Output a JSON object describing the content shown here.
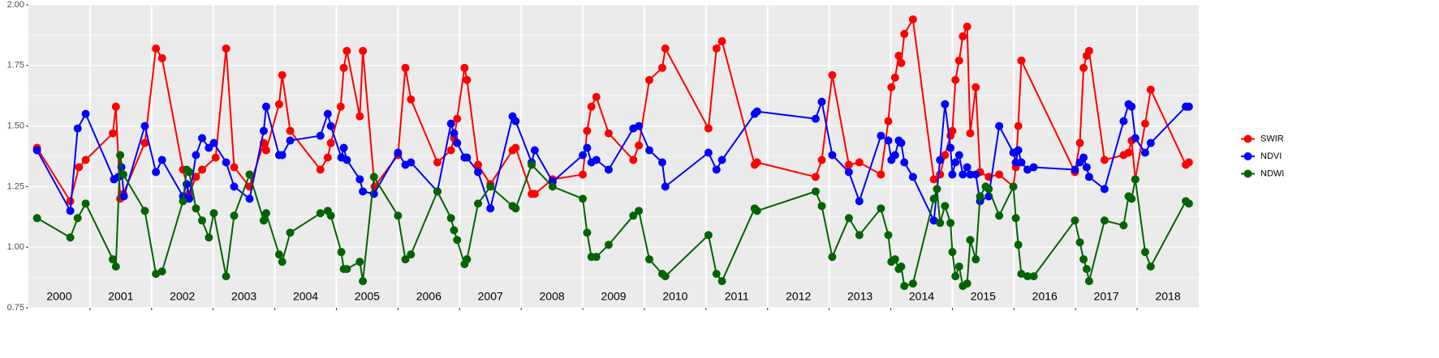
{
  "chart_data": {
    "type": "line",
    "series": [
      {
        "name": "SWIR",
        "color": "#ff0000",
        "x": [
          2000.14,
          2000.68,
          2000.82,
          2000.93,
          2001.37,
          2001.42,
          2001.49,
          2001.54,
          2001.89,
          2002.07,
          2002.17,
          2002.51,
          2002.61,
          2002.72,
          2002.82,
          2003.04,
          2003.21,
          2003.34,
          2003.59,
          2003.82,
          2003.86,
          2004.07,
          2004.12,
          2004.25,
          2004.74,
          2004.86,
          2004.91,
          2005.07,
          2005.12,
          2005.17,
          2005.38,
          2005.43,
          2005.62,
          2006.0,
          2006.12,
          2006.21,
          2006.64,
          2006.86,
          2006.91,
          2006.96,
          2007.08,
          2007.12,
          2007.3,
          2007.5,
          2007.86,
          2007.91,
          2008.17,
          2008.22,
          2008.51,
          2009.0,
          2009.07,
          2009.14,
          2009.22,
          2009.42,
          2009.82,
          2009.91,
          2010.08,
          2010.29,
          2010.34,
          2011.04,
          2011.17,
          2011.26,
          2011.79,
          2011.83,
          2012.78,
          2012.88,
          2013.05,
          2013.32,
          2013.49,
          2013.84,
          2013.96,
          2014.01,
          2014.07,
          2014.13,
          2014.17,
          2014.22,
          2014.36,
          2014.7,
          2014.8,
          2014.88,
          2014.97,
          2015.0,
          2015.05,
          2015.11,
          2015.17,
          2015.24,
          2015.29,
          2015.38,
          2015.45,
          2015.59,
          2015.76,
          2015.99,
          2016.03,
          2016.07,
          2016.12,
          2016.99,
          2017.07,
          2017.13,
          2017.18,
          2017.22,
          2017.47,
          2017.78,
          2017.86,
          2017.91,
          2017.97,
          2018.13,
          2018.22,
          2018.79,
          2018.84
        ],
        "values": [
          1.41,
          1.19,
          1.33,
          1.36,
          1.47,
          1.58,
          1.2,
          1.22,
          1.43,
          1.82,
          1.78,
          1.32,
          1.22,
          1.29,
          1.32,
          1.37,
          1.82,
          1.33,
          1.25,
          1.43,
          1.4,
          1.59,
          1.71,
          1.48,
          1.32,
          1.37,
          1.43,
          1.58,
          1.74,
          1.81,
          1.54,
          1.81,
          1.25,
          1.38,
          1.74,
          1.61,
          1.35,
          1.4,
          1.45,
          1.53,
          1.74,
          1.69,
          1.34,
          1.26,
          1.4,
          1.41,
          1.22,
          1.22,
          1.28,
          1.3,
          1.48,
          1.58,
          1.62,
          1.47,
          1.36,
          1.42,
          1.69,
          1.74,
          1.82,
          1.49,
          1.82,
          1.85,
          1.34,
          1.35,
          1.29,
          1.36,
          1.71,
          1.34,
          1.35,
          1.3,
          1.52,
          1.66,
          1.7,
          1.79,
          1.76,
          1.88,
          1.94,
          1.28,
          1.3,
          1.38,
          1.46,
          1.48,
          1.69,
          1.77,
          1.87,
          1.91,
          1.47,
          1.66,
          1.31,
          1.29,
          1.3,
          1.25,
          1.33,
          1.5,
          1.77,
          1.31,
          1.43,
          1.74,
          1.79,
          1.81,
          1.36,
          1.38,
          1.39,
          1.44,
          1.28,
          1.51,
          1.65,
          1.34,
          1.35
        ]
      },
      {
        "name": "NDVI",
        "color": "#0000ff",
        "x": [
          2000.14,
          2000.68,
          2000.8,
          2000.93,
          2001.39,
          2001.46,
          2001.51,
          2001.55,
          2001.89,
          2002.07,
          2002.17,
          2002.51,
          2002.57,
          2002.61,
          2002.72,
          2002.82,
          2002.93,
          2003.01,
          2003.21,
          2003.34,
          2003.59,
          2003.82,
          2003.86,
          2004.07,
          2004.12,
          2004.25,
          2004.74,
          2004.86,
          2004.91,
          2005.08,
          2005.12,
          2005.17,
          2005.38,
          2005.43,
          2005.61,
          2006.0,
          2006.12,
          2006.21,
          2006.64,
          2006.86,
          2006.91,
          2006.96,
          2007.08,
          2007.12,
          2007.3,
          2007.5,
          2007.86,
          2007.91,
          2008.17,
          2008.22,
          2008.51,
          2009.0,
          2009.07,
          2009.14,
          2009.22,
          2009.42,
          2009.82,
          2009.91,
          2010.08,
          2010.29,
          2010.34,
          2011.04,
          2011.17,
          2011.26,
          2011.79,
          2011.83,
          2012.78,
          2012.88,
          2013.05,
          2013.32,
          2013.49,
          2013.84,
          2013.96,
          2014.01,
          2014.07,
          2014.13,
          2014.17,
          2014.22,
          2014.36,
          2014.7,
          2014.8,
          2014.88,
          2014.97,
          2015.0,
          2015.05,
          2015.11,
          2015.17,
          2015.24,
          2015.29,
          2015.38,
          2015.45,
          2015.59,
          2015.76,
          2015.99,
          2016.03,
          2016.07,
          2016.12,
          2016.22,
          2016.32,
          2016.99,
          2017.07,
          2017.13,
          2017.18,
          2017.22,
          2017.47,
          2017.78,
          2017.86,
          2017.91,
          2017.97,
          2018.13,
          2018.22,
          2018.79,
          2018.84
        ],
        "values": [
          1.4,
          1.15,
          1.49,
          1.55,
          1.28,
          1.29,
          1.33,
          1.21,
          1.5,
          1.31,
          1.36,
          1.21,
          1.26,
          1.2,
          1.38,
          1.45,
          1.41,
          1.43,
          1.35,
          1.25,
          1.2,
          1.48,
          1.58,
          1.38,
          1.38,
          1.44,
          1.46,
          1.55,
          1.5,
          1.37,
          1.41,
          1.36,
          1.28,
          1.23,
          1.22,
          1.39,
          1.34,
          1.35,
          1.23,
          1.51,
          1.47,
          1.43,
          1.37,
          1.37,
          1.31,
          1.16,
          1.54,
          1.52,
          1.35,
          1.4,
          1.27,
          1.38,
          1.41,
          1.35,
          1.36,
          1.32,
          1.49,
          1.5,
          1.4,
          1.35,
          1.25,
          1.39,
          1.32,
          1.36,
          1.55,
          1.56,
          1.53,
          1.6,
          1.38,
          1.31,
          1.19,
          1.46,
          1.44,
          1.36,
          1.38,
          1.44,
          1.43,
          1.35,
          1.29,
          1.11,
          1.36,
          1.59,
          1.41,
          1.3,
          1.35,
          1.38,
          1.3,
          1.33,
          1.3,
          1.3,
          1.19,
          1.21,
          1.5,
          1.39,
          1.35,
          1.4,
          1.35,
          1.32,
          1.33,
          1.32,
          1.35,
          1.37,
          1.33,
          1.29,
          1.24,
          1.52,
          1.59,
          1.58,
          1.45,
          1.39,
          1.43,
          1.58,
          1.58
        ]
      },
      {
        "name": "NDWI",
        "color": "#006400",
        "x": [
          2000.14,
          2000.68,
          2000.8,
          2000.93,
          2001.37,
          2001.42,
          2001.49,
          2001.54,
          2001.89,
          2002.07,
          2002.17,
          2002.51,
          2002.57,
          2002.61,
          2002.72,
          2002.82,
          2002.93,
          2003.01,
          2003.21,
          2003.34,
          2003.59,
          2003.82,
          2003.86,
          2004.07,
          2004.12,
          2004.25,
          2004.74,
          2004.86,
          2004.91,
          2005.08,
          2005.12,
          2005.17,
          2005.38,
          2005.43,
          2005.61,
          2006.0,
          2006.12,
          2006.21,
          2006.64,
          2006.86,
          2006.91,
          2006.96,
          2007.08,
          2007.12,
          2007.3,
          2007.5,
          2007.86,
          2007.91,
          2008.17,
          2008.51,
          2009.0,
          2009.07,
          2009.14,
          2009.22,
          2009.42,
          2009.82,
          2009.91,
          2010.08,
          2010.29,
          2010.34,
          2011.04,
          2011.17,
          2011.26,
          2011.79,
          2011.83,
          2012.78,
          2012.88,
          2013.05,
          2013.32,
          2013.49,
          2013.84,
          2013.96,
          2014.01,
          2014.07,
          2014.13,
          2014.17,
          2014.22,
          2014.36,
          2014.7,
          2014.75,
          2014.8,
          2014.88,
          2014.97,
          2015.0,
          2015.05,
          2015.11,
          2015.17,
          2015.24,
          2015.29,
          2015.38,
          2015.45,
          2015.54,
          2015.59,
          2015.76,
          2015.99,
          2016.03,
          2016.07,
          2016.12,
          2016.22,
          2016.32,
          2016.99,
          2017.07,
          2017.13,
          2017.18,
          2017.22,
          2017.47,
          2017.78,
          2017.86,
          2017.91,
          2017.97,
          2018.13,
          2018.22,
          2018.79,
          2018.84
        ],
        "values": [
          1.12,
          1.04,
          1.12,
          1.18,
          0.95,
          0.92,
          1.38,
          1.3,
          1.15,
          0.89,
          0.9,
          1.19,
          1.32,
          1.31,
          1.16,
          1.11,
          1.04,
          1.14,
          0.88,
          1.13,
          1.3,
          1.11,
          1.14,
          0.97,
          0.94,
          1.06,
          1.14,
          1.15,
          1.13,
          0.98,
          0.91,
          0.91,
          0.94,
          0.86,
          1.29,
          1.13,
          0.95,
          0.97,
          1.23,
          1.12,
          1.07,
          1.03,
          0.93,
          0.95,
          1.18,
          1.25,
          1.17,
          1.16,
          1.34,
          1.25,
          1.2,
          1.06,
          0.96,
          0.96,
          1.01,
          1.13,
          1.15,
          0.95,
          0.89,
          0.88,
          1.05,
          0.89,
          0.86,
          1.16,
          1.15,
          1.23,
          1.17,
          0.96,
          1.12,
          1.05,
          1.16,
          1.05,
          0.94,
          0.95,
          0.91,
          0.92,
          0.84,
          0.85,
          1.2,
          1.24,
          1.1,
          1.17,
          1.1,
          0.98,
          0.88,
          0.92,
          0.84,
          0.85,
          1.03,
          0.95,
          1.21,
          1.25,
          1.24,
          1.13,
          1.25,
          1.12,
          1.01,
          0.89,
          0.88,
          0.88,
          1.11,
          1.02,
          0.95,
          0.91,
          0.86,
          1.11,
          1.09,
          1.21,
          1.2,
          1.28,
          0.98,
          0.92,
          1.19,
          1.18
        ]
      }
    ],
    "xlim": [
      2000,
      2019
    ],
    "xticks": [
      {
        "value": 2000.5,
        "label": "2000"
      },
      {
        "value": 2001.5,
        "label": "2001"
      },
      {
        "value": 2002.5,
        "label": "2002"
      },
      {
        "value": 2003.5,
        "label": "2003"
      },
      {
        "value": 2004.5,
        "label": "2004"
      },
      {
        "value": 2005.5,
        "label": "2005"
      },
      {
        "value": 2006.5,
        "label": "2006"
      },
      {
        "value": 2007.5,
        "label": "2007"
      },
      {
        "value": 2008.5,
        "label": "2008"
      },
      {
        "value": 2009.5,
        "label": "2009"
      },
      {
        "value": 2010.5,
        "label": "2010"
      },
      {
        "value": 2011.5,
        "label": "2011"
      },
      {
        "value": 2012.5,
        "label": "2012"
      },
      {
        "value": 2013.5,
        "label": "2013"
      },
      {
        "value": 2014.5,
        "label": "2014"
      },
      {
        "value": 2015.5,
        "label": "2015"
      },
      {
        "value": 2016.5,
        "label": "2016"
      },
      {
        "value": 2017.5,
        "label": "2017"
      },
      {
        "value": 2018.5,
        "label": "2018"
      }
    ],
    "year_lines": [
      2001,
      2002,
      2003,
      2004,
      2005,
      2006,
      2007,
      2008,
      2009,
      2010,
      2011,
      2012,
      2013,
      2014,
      2015,
      2016,
      2017,
      2018
    ],
    "ylim": [
      0.75,
      2.0
    ],
    "yticks": [
      0.75,
      {
        "value": 1.0,
        "label": "1.00"
      },
      1.25,
      {
        "value": 1.5,
        "label": "1.50"
      },
      1.75,
      {
        "value": 2.0,
        "label": "2.00"
      }
    ],
    "grid": true,
    "legend": "right"
  }
}
